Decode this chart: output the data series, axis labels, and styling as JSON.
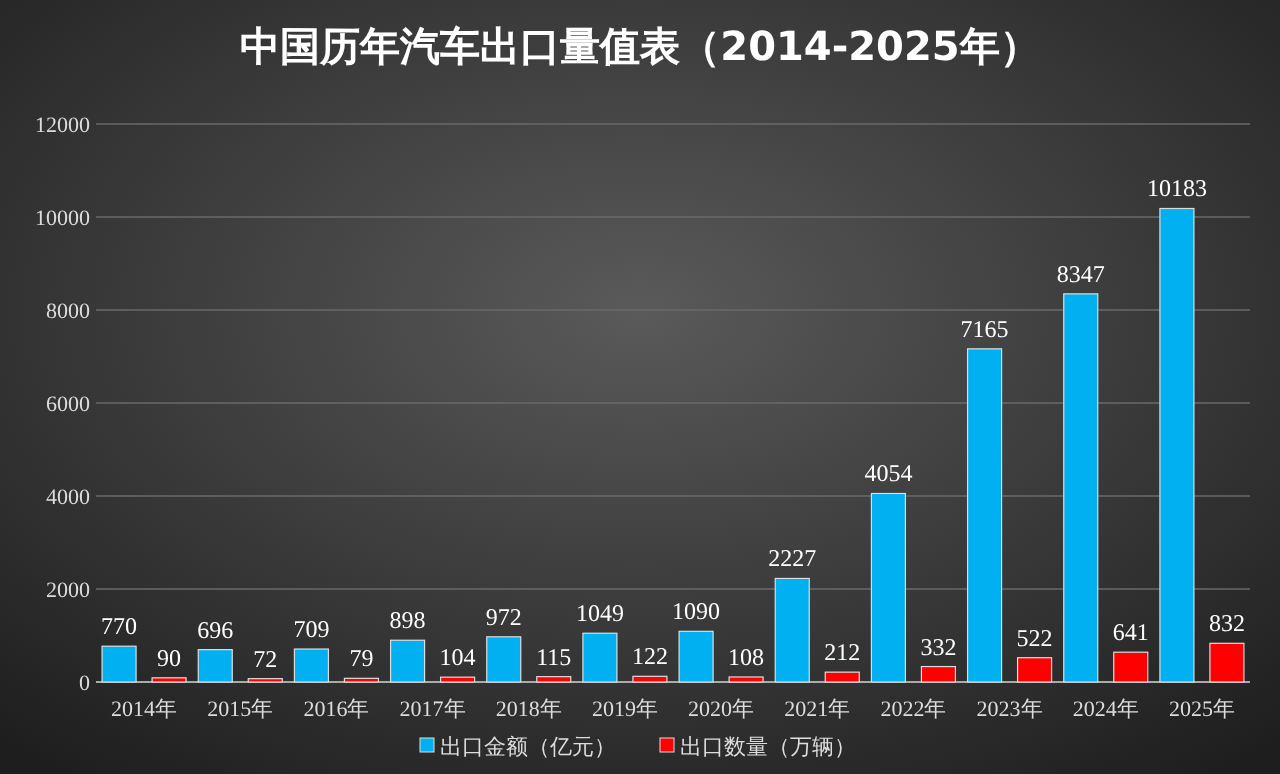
{
  "chart_data": {
    "type": "bar",
    "title": "中国历年汽车出口量值表（2014-2025年）",
    "categories": [
      "2014年",
      "2015年",
      "2016年",
      "2017年",
      "2018年",
      "2019年",
      "2020年",
      "2021年",
      "2022年",
      "2023年",
      "2024年",
      "2025年"
    ],
    "series": [
      {
        "name": "出口金额（亿元）",
        "color": "#00b0f0",
        "values": [
          770,
          696,
          709,
          898,
          972,
          1049,
          1090,
          2227,
          4054,
          7165,
          8347,
          10183
        ]
      },
      {
        "name": "出口数量（万辆）",
        "color": "#ff0000",
        "values": [
          90,
          72,
          79,
          104,
          115,
          122,
          108,
          212,
          332,
          522,
          641,
          832
        ]
      }
    ],
    "ylim": [
      0,
      12000
    ],
    "yticks": [
      0,
      2000,
      4000,
      6000,
      8000,
      10000,
      12000
    ],
    "grid": "y",
    "legend": "bottom",
    "data_labels": true
  }
}
